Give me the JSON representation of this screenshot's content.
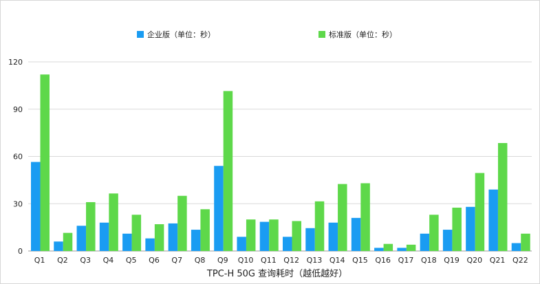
{
  "chart_data": {
    "type": "bar",
    "title": "",
    "xlabel": "TPC-H 50G 查询耗时（越低越好）",
    "ylabel": "",
    "categories": [
      "Q1",
      "Q2",
      "Q3",
      "Q4",
      "Q5",
      "Q6",
      "Q7",
      "Q8",
      "Q9",
      "Q10",
      "Q11",
      "Q12",
      "Q13",
      "Q14",
      "Q15",
      "Q16",
      "Q17",
      "Q18",
      "Q19",
      "Q20",
      "Q21",
      "Q22"
    ],
    "series": [
      {
        "name": "企业版（单位：秒）",
        "color": "#1a9cf2",
        "values": [
          56.5,
          6,
          16,
          18,
          11,
          8,
          17.5,
          13.5,
          54,
          9,
          18.5,
          9,
          14.5,
          18,
          21,
          2,
          2,
          11,
          13.5,
          28,
          39,
          5
        ]
      },
      {
        "name": "标准版（单位：秒）",
        "color": "#5ed84a",
        "values": [
          112,
          11.5,
          31,
          36.5,
          23,
          17,
          35,
          26.5,
          101.5,
          20,
          20,
          19,
          31.5,
          42.5,
          43,
          4.5,
          4,
          23,
          27.5,
          49.5,
          68.5,
          11
        ]
      }
    ],
    "ylim": [
      0,
      120
    ],
    "yticks": [
      0,
      30,
      60,
      90,
      120
    ],
    "grid": true,
    "legend_position": "top-center"
  }
}
